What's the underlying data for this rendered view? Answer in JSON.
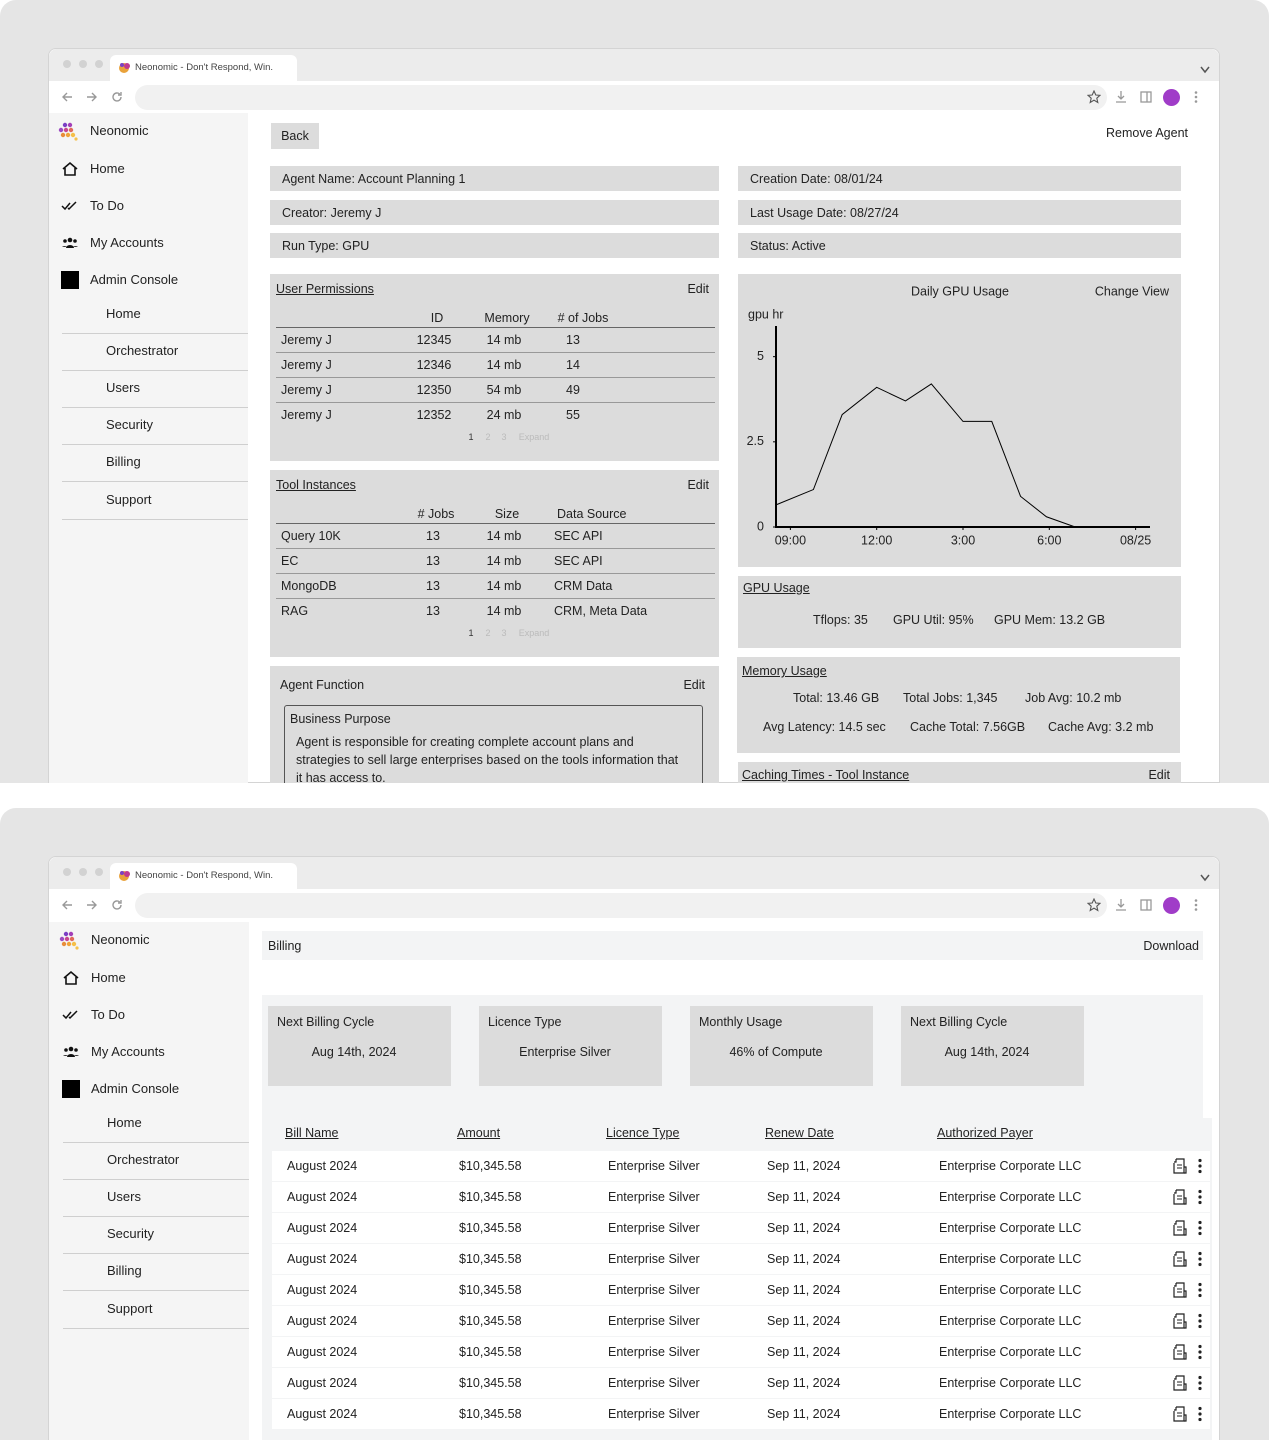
{
  "browser": {
    "tab_title": "Neonomic - Don't Respond, Win."
  },
  "sidebar": {
    "brand": "Neonomic",
    "nav": [
      "Home",
      "To Do",
      "My Accounts",
      "Admin Console"
    ],
    "admin_items": [
      "Home",
      "Orchestrator",
      "Users",
      "Security",
      "Billing",
      "Support"
    ]
  },
  "agent_page": {
    "back": "Back",
    "remove": "Remove Agent",
    "info_left": [
      "Agent Name: Account Planning 1",
      "Creator: Jeremy J",
      "Run Type: GPU"
    ],
    "info_right": [
      "Creation Date: 08/01/24",
      "Last Usage Date: 08/27/24",
      "Status: Active"
    ],
    "user_permissions": {
      "title": "User Permissions",
      "edit": "Edit",
      "columns": [
        "ID",
        "Memory",
        "# of Jobs"
      ],
      "rows": [
        [
          "Jeremy J",
          "12345",
          "14 mb",
          "13"
        ],
        [
          "Jeremy J",
          "12346",
          "14 mb",
          "14"
        ],
        [
          "Jeremy J",
          "12350",
          "54 mb",
          "49"
        ],
        [
          "Jeremy J",
          "12352",
          "24 mb",
          "55"
        ]
      ],
      "pagination": [
        "1",
        "2",
        "3",
        "Expand"
      ]
    },
    "tool_instances": {
      "title": "Tool Instances",
      "edit": "Edit",
      "columns": [
        "# Jobs",
        "Size",
        "Data Source"
      ],
      "rows": [
        [
          "Query 10K",
          "13",
          "14 mb",
          "SEC API"
        ],
        [
          "EC",
          "13",
          "14 mb",
          "SEC API"
        ],
        [
          "MongoDB",
          "13",
          "14 mb",
          "CRM Data"
        ],
        [
          "RAG",
          "13",
          "14 mb",
          "CRM, Meta Data"
        ]
      ],
      "pagination": [
        "1",
        "2",
        "3",
        "Expand"
      ]
    },
    "agent_function": {
      "title": "Agent Function",
      "edit": "Edit",
      "box_title": "Business Purpose",
      "text": "Agent is responsible for creating complete account plans and strategies to sell large enterprises based on the tools information that it has access to."
    },
    "gpu_usage": {
      "title": "GPU Usage",
      "stats": [
        "Tflops: 35",
        "GPU Util: 95%",
        "GPU Mem: 13.2 GB"
      ]
    },
    "memory_usage": {
      "title": "Memory Usage",
      "stats": [
        [
          "Total: 13.46 GB",
          "Total Jobs: 1,345",
          "Job Avg: 10.2 mb"
        ],
        [
          "Avg Latency: 14.5 sec",
          "Cache Total: 7.56GB",
          "Cache Avg: 3.2 mb"
        ]
      ]
    },
    "caching_times": {
      "title": "Caching Times - Tool Instance",
      "edit": "Edit"
    }
  },
  "chart_data": {
    "type": "line",
    "title": "Daily GPU Usage",
    "action": "Change View",
    "y_label": "gpu hr",
    "x": [
      8.5,
      9.8,
      10.8,
      12,
      13,
      13.9,
      15,
      16,
      17,
      17.9,
      18.9
    ],
    "values": [
      0.65,
      1.1,
      3.3,
      4.1,
      3.7,
      4.2,
      3.1,
      3.1,
      0.9,
      0.3,
      0
    ],
    "color": "#000000",
    "xlim": [
      8.5,
      21.5
    ],
    "ylim": [
      0,
      5.9
    ],
    "xticks": [
      {
        "value": 9,
        "label": "09:00"
      },
      {
        "value": 12,
        "label": "12:00"
      },
      {
        "value": 15,
        "label": "3:00"
      },
      {
        "value": 18,
        "label": "6:00"
      },
      {
        "value": 21,
        "label": "08/25"
      }
    ],
    "yticks": [
      0,
      2.5,
      5
    ]
  },
  "billing_page": {
    "title": "Billing",
    "download": "Download",
    "cards": [
      {
        "label": "Next Billing Cycle",
        "value": "Aug 14th, 2024"
      },
      {
        "label": "Licence Type",
        "value": "Enterprise Silver"
      },
      {
        "label": "Monthly Usage",
        "value": "46% of Compute"
      },
      {
        "label": "Next Billing Cycle",
        "value": "Aug 14th, 2024"
      }
    ],
    "table": {
      "columns": [
        "Bill Name",
        "Amount",
        "Licence Type",
        "Renew Date",
        "Authorized Payer"
      ],
      "rows": [
        [
          "August 2024",
          "$10,345.58",
          "Enterprise Silver",
          "Sep 11, 2024",
          "Enterprise Corporate LLC"
        ],
        [
          "August 2024",
          "$10,345.58",
          "Enterprise Silver",
          "Sep 11, 2024",
          "Enterprise Corporate LLC"
        ],
        [
          "August 2024",
          "$10,345.58",
          "Enterprise Silver",
          "Sep 11, 2024",
          "Enterprise Corporate LLC"
        ],
        [
          "August 2024",
          "$10,345.58",
          "Enterprise Silver",
          "Sep 11, 2024",
          "Enterprise Corporate LLC"
        ],
        [
          "August 2024",
          "$10,345.58",
          "Enterprise Silver",
          "Sep 11, 2024",
          "Enterprise Corporate LLC"
        ],
        [
          "August 2024",
          "$10,345.58",
          "Enterprise Silver",
          "Sep 11, 2024",
          "Enterprise Corporate LLC"
        ],
        [
          "August 2024",
          "$10,345.58",
          "Enterprise Silver",
          "Sep 11, 2024",
          "Enterprise Corporate LLC"
        ],
        [
          "August 2024",
          "$10,345.58",
          "Enterprise Silver",
          "Sep 11, 2024",
          "Enterprise Corporate LLC"
        ],
        [
          "August 2024",
          "$10,345.58",
          "Enterprise Silver",
          "Sep 11, 2024",
          "Enterprise Corporate LLC"
        ]
      ]
    }
  }
}
